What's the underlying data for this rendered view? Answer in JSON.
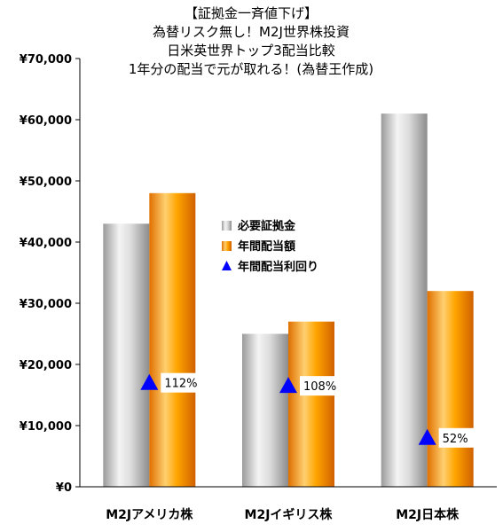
{
  "chart_data": {
    "type": "bar",
    "title_lines": [
      "【証拠金一斉値下げ】",
      "為替リスク無し！M2J世界株投資",
      "日米英世界トップ3配当比較",
      "1年分の配当で元が取れる！(為替王作成)"
    ],
    "categories": [
      "M2Jアメリカ株",
      "M2Jイギリス株",
      "M2J日本株"
    ],
    "series": [
      {
        "name": "必要証拠金",
        "values": [
          43000,
          25000,
          61000
        ]
      },
      {
        "name": "年間配当額",
        "values": [
          48000,
          27000,
          32000
        ]
      }
    ],
    "yield_series": {
      "name": "年間配当利回り",
      "labels": [
        "112%",
        "108%",
        "52%"
      ],
      "y_positions": [
        17000,
        16500,
        8000
      ]
    },
    "ylim": [
      0,
      70000
    ],
    "yticks": [
      {
        "value": 0,
        "label": "¥0"
      },
      {
        "value": 10000,
        "label": "¥10,000"
      },
      {
        "value": 20000,
        "label": "¥20,000"
      },
      {
        "value": 30000,
        "label": "¥30,000"
      },
      {
        "value": 40000,
        "label": "¥40,000"
      },
      {
        "value": 50000,
        "label": "¥50,000"
      },
      {
        "value": 60000,
        "label": "¥60,000"
      },
      {
        "value": 70000,
        "label": "¥70,000"
      }
    ],
    "grid": false,
    "legend_position": "center",
    "colors": {
      "margin_bar": "#d8d8d8",
      "dividend_bar": "#ff9900",
      "marker": "#0000ff"
    }
  }
}
